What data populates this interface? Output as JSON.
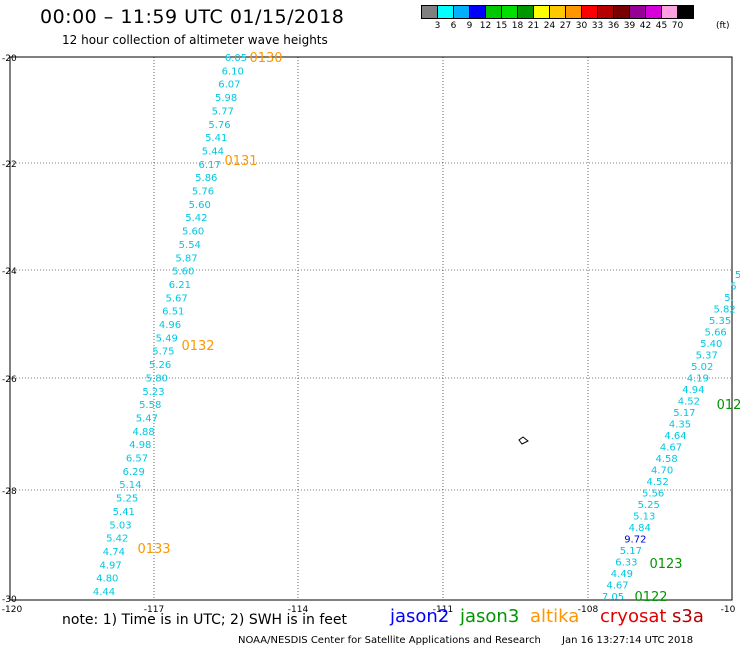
{
  "header": {
    "title": "00:00 – 11:59 UTC 01/15/2018",
    "subtitle": "12 hour collection of altimeter wave heights"
  },
  "legend": {
    "colors": [
      "#808080",
      "#00ffff",
      "#00b0ff",
      "#0000ff",
      "#00c800",
      "#00e000",
      "#009600",
      "#ffff00",
      "#ffc800",
      "#ff9600",
      "#ff0000",
      "#b40000",
      "#7a0000",
      "#960096",
      "#d800d8",
      "#ffa0e0",
      "#000000"
    ],
    "labels": [
      "3",
      "6",
      "9",
      "12",
      "15",
      "18",
      "21",
      "24",
      "27",
      "30",
      "33",
      "36",
      "39",
      "42",
      "45",
      "70"
    ],
    "unit": "(ft)"
  },
  "map": {
    "lat_ticks": [
      "-20",
      "-22",
      "-24",
      "-26",
      "-28",
      "-30"
    ],
    "lon_ticks": [
      "-120",
      "-117",
      "-114",
      "-111",
      "-108",
      "-10"
    ]
  },
  "tracks": {
    "altika": {
      "color": "#00c8e0",
      "values": [
        "6.05",
        "6.10",
        "6.07",
        "5.98",
        "5.77",
        "5.76",
        "5.41",
        "5.44",
        "6.17",
        "5.86",
        "5.76",
        "5.60",
        "5.42",
        "5.60",
        "5.54",
        "5.87",
        "5.60",
        "6.21",
        "5.67",
        "6.51",
        "4.96",
        "5.49",
        "5.75",
        "5.26",
        "5.80",
        "5.23",
        "5.58",
        "5.47",
        "4.88",
        "4.98",
        "6.57",
        "6.29",
        "5.14",
        "5.25",
        "5.41",
        "5.03",
        "5.42",
        "4.74",
        "4.97",
        "4.80",
        "4.44"
      ],
      "times": [
        {
          "label": "0130",
          "color": "#ff9600"
        },
        {
          "label": "0131",
          "color": "#ff9600"
        },
        {
          "label": "0132",
          "color": "#ff9600"
        },
        {
          "label": "0133",
          "color": "#ff9600"
        }
      ]
    },
    "jason3": {
      "color": "#00c8e0",
      "values": [
        "5",
        "5",
        "5.",
        "5.82",
        "5.35",
        "5.66",
        "5.40",
        "5.37",
        "5.02",
        "4.19",
        "4.94",
        "4.52",
        "5.17",
        "4.35",
        "4.64",
        "4.67",
        "4.58",
        "4.70",
        "4.52",
        "5.56",
        "5.25",
        "5.13",
        "4.84",
        "9.72",
        "5.17",
        "6.33",
        "4.49",
        "4.67",
        "7.05"
      ],
      "value_colors_blue_index": 23,
      "times": [
        {
          "label": "012",
          "color": "#009600"
        },
        {
          "label": "0123",
          "color": "#009600"
        },
        {
          "label": "0122",
          "color": "#009600"
        }
      ]
    }
  },
  "satellites": [
    {
      "name": "jason2",
      "color": "#0000ff"
    },
    {
      "name": "jason3",
      "color": "#009600"
    },
    {
      "name": "altika",
      "color": "#ff9600"
    },
    {
      "name": "cryosat",
      "color": "#e00000"
    },
    {
      "name": "s3a",
      "color": "#b40000"
    }
  ],
  "note": "note: 1) Time is in UTC; 2) SWH is in feet",
  "footer": {
    "credit": "NOAA/NESDIS Center for Satellite Applications and Research",
    "timestamp": "Jan 16 13:27:14 UTC 2018"
  }
}
